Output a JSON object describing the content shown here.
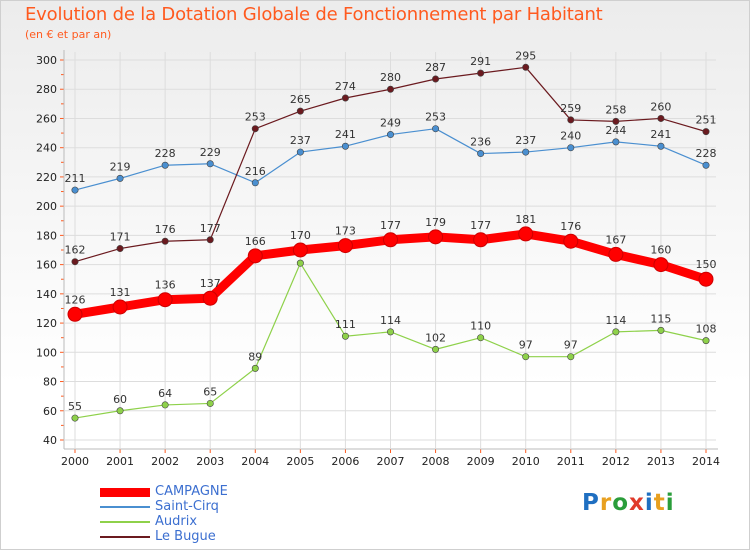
{
  "title": "Evolution de la Dotation Globale de Fonctionnement par Habitant",
  "subtitle": "(en € et par an)",
  "logo": {
    "text": "Proxiti",
    "colors": [
      "#1f6fc1",
      "#e8a020",
      "#2a9d3a",
      "#e03a2a",
      "#1f6fc1",
      "#e8a020",
      "#2a9d3a"
    ]
  },
  "chart_data": {
    "type": "line",
    "x": [
      "2000",
      "2001",
      "2002",
      "2003",
      "2004",
      "2005",
      "2006",
      "2007",
      "2008",
      "2009",
      "2010",
      "2011",
      "2012",
      "2013",
      "2014"
    ],
    "ylim": [
      40,
      300
    ],
    "yticks": [
      40,
      60,
      80,
      100,
      120,
      140,
      160,
      180,
      200,
      220,
      240,
      260,
      280,
      300
    ],
    "grid": true,
    "legend_position": "bottom-left",
    "series": [
      {
        "name": "CAMPAGNE",
        "color": "#ff0000",
        "values": [
          126,
          131,
          136,
          137,
          166,
          170,
          173,
          177,
          179,
          177,
          181,
          176,
          167,
          160,
          150
        ]
      },
      {
        "name": "Saint-Cirq",
        "color": "#4a8fd0",
        "values": [
          211,
          219,
          228,
          229,
          216,
          237,
          241,
          249,
          253,
          236,
          237,
          240,
          244,
          241,
          228
        ]
      },
      {
        "name": "Audrix",
        "color": "#8ed14a",
        "values": [
          55,
          60,
          64,
          65,
          89,
          161,
          111,
          114,
          102,
          110,
          97,
          97,
          114,
          115,
          108
        ]
      },
      {
        "name": "Le Bugue",
        "color": "#6b1a1f",
        "values": [
          162,
          171,
          176,
          177,
          253,
          265,
          274,
          280,
          287,
          291,
          295,
          259,
          258,
          260,
          251
        ]
      }
    ]
  }
}
